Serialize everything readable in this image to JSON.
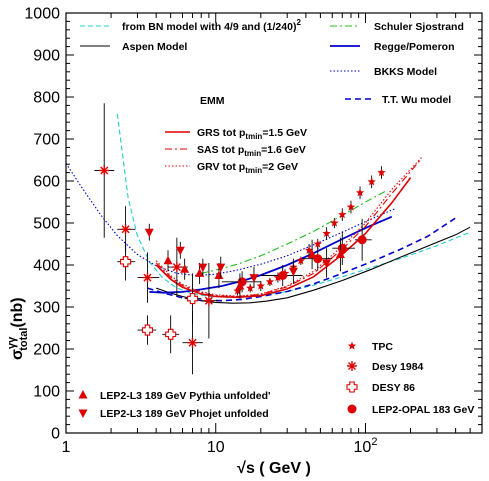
{
  "chart_data": {
    "type": "scatter",
    "xscale": "log",
    "xlim": [
      1,
      600
    ],
    "ylim": [
      0,
      1000
    ],
    "xlabel": "√s ( GeV )",
    "ylabel": "σγγtotal(nb)",
    "ylabel_parts": {
      "base": "σ",
      "sup": "γγ",
      "sub": "total",
      "unit": "(nb)"
    },
    "xticks": [
      {
        "v": 1,
        "label": "1"
      },
      {
        "v": 10,
        "label": "10"
      },
      {
        "v": 100,
        "label": "10",
        "sup": "2"
      }
    ],
    "yticks": [
      0,
      100,
      200,
      300,
      400,
      500,
      600,
      700,
      800,
      900,
      1000
    ],
    "emm_title": "EMM",
    "curves": [
      {
        "name": "from BN model with 4/9 and (1/240)",
        "sup": "2",
        "color": "#22cccc",
        "dash": "5,3",
        "width": 1.1,
        "x": [
          2.2,
          2.6,
          3,
          3.6,
          4.4,
          5.5,
          7,
          9,
          12,
          16,
          22,
          30,
          45,
          70,
          110,
          180,
          300,
          500
        ],
        "y": [
          760,
          560,
          470,
          408,
          370,
          345,
          332,
          325,
          323,
          325,
          330,
          337,
          352,
          372,
          394,
          418,
          446,
          478
        ]
      },
      {
        "name": "Aspen Model",
        "color": "#000000",
        "dash": "",
        "width": 1.1,
        "x": [
          4,
          5,
          6,
          8,
          10,
          13,
          17,
          22,
          30,
          45,
          70,
          110,
          170,
          260,
          400,
          500
        ],
        "y": [
          345,
          333,
          325,
          315,
          311,
          309,
          310,
          314,
          322,
          340,
          363,
          390,
          418,
          445,
          472,
          490
        ]
      },
      {
        "name": "Schuler Sjostrand",
        "color": "#22bb22",
        "dash": "7,3,2,3",
        "width": 1.1,
        "x": [
          8,
          10,
          14,
          20,
          30,
          45,
          70,
          100,
          140
        ],
        "y": [
          380,
          388,
          402,
          422,
          450,
          480,
          518,
          550,
          578
        ]
      },
      {
        "name": "Regge/Pomeron",
        "color": "#0000cc",
        "dash": "",
        "width": 1.8,
        "x": [
          3.6,
          4.5,
          6,
          8,
          11,
          15,
          20,
          30,
          45,
          70,
          100,
          150
        ],
        "y": [
          336,
          334,
          336,
          342,
          350,
          362,
          376,
          400,
          428,
          462,
          488,
          515
        ]
      },
      {
        "name": "BKKS Model",
        "color": "#0000cc",
        "dash": "1.5,2",
        "width": 1.1,
        "x": [
          1,
          1.3,
          1.7,
          2.2,
          3,
          4,
          5.5,
          7.5,
          10,
          14,
          20,
          30,
          45,
          70,
          110,
          160
        ],
        "y": [
          642,
          580,
          520,
          470,
          425,
          398,
          380,
          375,
          378,
          388,
          402,
          422,
          448,
          478,
          510,
          535
        ]
      },
      {
        "name": "T.T. Wu model",
        "color": "#0000cc",
        "dash": "6,4",
        "width": 1.6,
        "x": [
          3.5,
          4.5,
          6,
          8,
          11,
          15,
          20,
          30,
          45,
          70,
          110,
          170,
          260,
          400
        ],
        "y": [
          345,
          333,
          322,
          316,
          315,
          318,
          325,
          337,
          355,
          380,
          408,
          437,
          468,
          512
        ]
      },
      {
        "name": "GRS tot p",
        "sub": "tmin",
        "suffix": "=1.5 GeV",
        "color": "#dd0000",
        "dash": "",
        "width": 1.6,
        "x": [
          4,
          5,
          6,
          8,
          10,
          14,
          20,
          30,
          45,
          70,
          100,
          150,
          200
        ],
        "y": [
          400,
          366,
          347,
          331,
          325,
          323,
          327,
          343,
          372,
          425,
          475,
          548,
          608
        ]
      },
      {
        "name": "SAS tot p",
        "sub": "tmin",
        "suffix": "=1.6 GeV",
        "color": "#dd0000",
        "dash": "7,3,2,3",
        "width": 1.1,
        "x": [
          4,
          5,
          6,
          8,
          10,
          14,
          20,
          30,
          45,
          70,
          100,
          150,
          230
        ],
        "y": [
          405,
          371,
          351,
          334,
          327,
          325,
          330,
          348,
          380,
          438,
          492,
          570,
          648
        ]
      },
      {
        "name": "GRV tot p",
        "sub": "tmin",
        "suffix": "=2 GeV",
        "color": "#dd0000",
        "dash": "1.5,2",
        "width": 1.1,
        "x": [
          4,
          5,
          6,
          8,
          10,
          14,
          20,
          30,
          45,
          70,
          100,
          150,
          240
        ],
        "y": [
          410,
          375,
          354,
          336,
          329,
          326,
          331,
          350,
          385,
          445,
          500,
          580,
          658
        ]
      }
    ],
    "point_series": [
      {
        "name": "TPC",
        "marker": "star",
        "color": "#dd0000",
        "points": [
          {
            "x": 92,
            "y": 572,
            "e": 15
          },
          {
            "x": 70,
            "y": 520,
            "e": 15
          },
          {
            "x": 55,
            "y": 475,
            "e": 15
          },
          {
            "x": 42,
            "y": 435,
            "e": 15
          },
          {
            "x": 128,
            "y": 620,
            "e": 15
          },
          {
            "x": 20,
            "y": 350,
            "e": 12
          },
          {
            "x": 26,
            "y": 370,
            "e": 12
          },
          {
            "x": 33,
            "y": 395,
            "e": 12
          },
          {
            "x": 48,
            "y": 450,
            "e": 12
          },
          {
            "x": 62,
            "y": 500,
            "e": 12
          },
          {
            "x": 80,
            "y": 538,
            "e": 15
          },
          {
            "x": 110,
            "y": 598,
            "e": 15
          },
          {
            "x": 14,
            "y": 338,
            "e": 10
          },
          {
            "x": 17,
            "y": 345,
            "e": 10
          },
          {
            "x": 23,
            "y": 360,
            "e": 10
          },
          {
            "x": 29,
            "y": 380,
            "e": 10
          },
          {
            "x": 37,
            "y": 410,
            "e": 10
          }
        ]
      },
      {
        "name": "Desy 1984",
        "marker": "asterisk",
        "color": "#dd0000",
        "points": [
          {
            "x": 1.8,
            "y": 625,
            "e": 160,
            "xl": 1.55,
            "xh": 2.1
          },
          {
            "x": 2.5,
            "y": 485,
            "e": 55,
            "xl": 2.2,
            "xh": 2.9
          },
          {
            "x": 3.5,
            "y": 370,
            "e": 60,
            "xl": 3.0,
            "xh": 4.2
          },
          {
            "x": 5.5,
            "y": 395,
            "e": 70,
            "xl": 4.8,
            "xh": 6.5
          },
          {
            "x": 7,
            "y": 215,
            "e": 75,
            "xl": 6.0,
            "xh": 8.2
          },
          {
            "x": 9,
            "y": 315,
            "e": 90,
            "xl": 7.8,
            "xh": 10.5
          }
        ]
      },
      {
        "name": "DESY 86",
        "marker": "cross",
        "color": "#dd0000",
        "points": [
          {
            "x": 2.5,
            "y": 408,
            "e": 45,
            "xl": 2.2,
            "xh": 2.9
          },
          {
            "x": 3.5,
            "y": 245,
            "e": 35,
            "xl": 3.0,
            "xh": 4.0
          },
          {
            "x": 5,
            "y": 235,
            "e": 45,
            "xl": 4.4,
            "xh": 5.7
          },
          {
            "x": 7,
            "y": 320,
            "e": 60,
            "xl": 6.2,
            "xh": 8.0
          }
        ]
      },
      {
        "name": "LEP2-OPAL 183 GeV",
        "marker": "circle",
        "color": "#dd0000",
        "points": [
          {
            "x": 15,
            "y": 360,
            "e": 25,
            "xl": 11,
            "xh": 20
          },
          {
            "x": 28,
            "y": 375,
            "e": 25,
            "xl": 20,
            "xh": 38
          },
          {
            "x": 48,
            "y": 415,
            "e": 28,
            "xl": 38,
            "xh": 60
          },
          {
            "x": 70,
            "y": 440,
            "e": 40,
            "xl": 60,
            "xh": 85
          },
          {
            "x": 95,
            "y": 460,
            "e": 50,
            "xl": 85,
            "xh": 110
          }
        ]
      },
      {
        "name": "LEP2-L3 189 GeV Pythia unfolded'",
        "marker": "triangle-up",
        "color": "#dd0000",
        "points": [
          {
            "x": 4.8,
            "y": 410,
            "e": 25
          },
          {
            "x": 6.2,
            "y": 390,
            "e": 25
          },
          {
            "x": 7.8,
            "y": 380,
            "e": 25
          },
          {
            "x": 10.5,
            "y": 375,
            "e": 30
          },
          {
            "x": 14.5,
            "y": 350,
            "e": 30
          },
          {
            "x": 44,
            "y": 425,
            "e": 35
          },
          {
            "x": 68,
            "y": 425,
            "e": 40
          }
        ]
      },
      {
        "name": "LEP2-L3 189 GeV Phojet unfolded",
        "marker": "triangle-down",
        "color": "#dd0000",
        "points": [
          {
            "x": 3.6,
            "y": 478,
            "e": 20
          },
          {
            "x": 5.8,
            "y": 435,
            "e": 20
          },
          {
            "x": 8.2,
            "y": 395,
            "e": 20
          },
          {
            "x": 10.8,
            "y": 395,
            "e": 25
          },
          {
            "x": 18,
            "y": 370,
            "e": 25
          },
          {
            "x": 33,
            "y": 385,
            "e": 30
          },
          {
            "x": 55,
            "y": 405,
            "e": 35
          }
        ]
      }
    ]
  }
}
